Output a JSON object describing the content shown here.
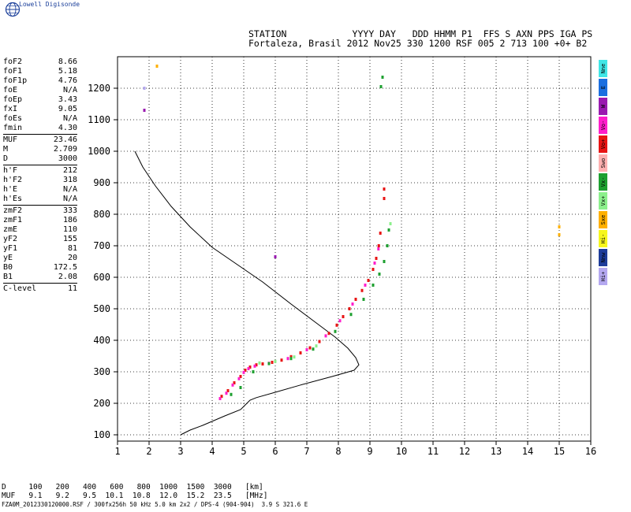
{
  "brand": {
    "name": "Lowell Digisonde"
  },
  "header": {
    "line1": "STATION            YYYY DAY   DDD HHMM P1  FFS S AXN PPS IGA PS",
    "line2": "Fortaleza, Brasil 2012 Nov25 330 1200 RSF 005 2 713 100 +0+ B2"
  },
  "params": [
    {
      "label": "foF2",
      "value": "8.66"
    },
    {
      "label": "foF1",
      "value": "5.18"
    },
    {
      "label": "foF1p",
      "value": "4.76"
    },
    {
      "label": "foE",
      "value": "N/A"
    },
    {
      "label": "foEp",
      "value": "3.43"
    },
    {
      "label": "fxI",
      "value": "9.05"
    },
    {
      "label": "foEs",
      "value": "N/A"
    },
    {
      "label": "fmin",
      "value": "4.30"
    },
    {
      "sep": true
    },
    {
      "label": "MUF",
      "value": "23.46"
    },
    {
      "label": "M",
      "value": "2.709"
    },
    {
      "label": "D",
      "value": "3000"
    },
    {
      "sep": true
    },
    {
      "label": "h'F",
      "value": "212"
    },
    {
      "label": "h'F2",
      "value": "318"
    },
    {
      "label": "h'E",
      "value": "N/A"
    },
    {
      "label": "h'Es",
      "value": "N/A"
    },
    {
      "sep": true
    },
    {
      "label": "zmF2",
      "value": "333"
    },
    {
      "label": "zmF1",
      "value": "186"
    },
    {
      "label": "zmE",
      "value": "110"
    },
    {
      "label": "yF2",
      "value": "155"
    },
    {
      "label": "yF1",
      "value": "81"
    },
    {
      "label": "yE",
      "value": "20"
    },
    {
      "label": "B0",
      "value": "172.5"
    },
    {
      "label": "B1",
      "value": "2.08"
    },
    {
      "sep": true
    },
    {
      "label": "C-level",
      "value": "11"
    }
  ],
  "legend": [
    {
      "label": "Nne",
      "color": "#3fe6e6"
    },
    {
      "label": "E",
      "color": "#1a6fe0"
    },
    {
      "label": "W",
      "color": "#9a1ab0"
    },
    {
      "label": "Vo-",
      "color": "#ff1ecb"
    },
    {
      "label": "Vo+",
      "color": "#e81414"
    },
    {
      "label": "Swo",
      "color": "#ffb0b0"
    },
    {
      "label": "Vx-",
      "color": "#1ea030"
    },
    {
      "label": "Vx+",
      "color": "#8cf08c"
    },
    {
      "label": "Sxe",
      "color": "#ffb000"
    },
    {
      "label": "Hi-",
      "color": "#f6f61e"
    },
    {
      "label": "Nnw",
      "color": "#1e3c9a"
    },
    {
      "label": "Hi+",
      "color": "#b4a8f0"
    }
  ],
  "footer": {
    "d_row": "D     100   200   400   600   800  1000  1500  3000   [km]",
    "muf_row": "MUF   9.1   9.2   9.5  10.1  10.8  12.0  15.2  23.5   [MHz]",
    "note": "FZA0M_2012330120000.RSF / 300fx256h 50 kHz 5.0 km 2x2 / DPS-4 (904-904)  3.9 S 321.6 E"
  },
  "chart_data": {
    "type": "scatter",
    "xlim": [
      1,
      16
    ],
    "ylim": [
      80,
      1300
    ],
    "x_ticks": [
      1,
      2,
      3,
      4,
      5,
      6,
      7,
      8,
      9,
      10,
      11,
      12,
      13,
      14,
      15,
      16
    ],
    "y_ticks": [
      100,
      200,
      300,
      400,
      500,
      600,
      700,
      800,
      900,
      1000,
      1100,
      1200
    ],
    "grid": true,
    "profile": [
      [
        1.55,
        1000
      ],
      [
        1.8,
        950
      ],
      [
        2.2,
        890
      ],
      [
        2.7,
        825
      ],
      [
        3.3,
        760
      ],
      [
        4.0,
        695
      ],
      [
        4.8,
        640
      ],
      [
        5.6,
        585
      ],
      [
        6.5,
        515
      ],
      [
        7.3,
        455
      ],
      [
        7.9,
        410
      ],
      [
        8.3,
        375
      ],
      [
        8.55,
        345
      ],
      [
        8.65,
        322
      ],
      [
        8.5,
        305
      ],
      [
        7.8,
        285
      ],
      [
        6.8,
        258
      ],
      [
        6.0,
        235
      ],
      [
        5.4,
        218
      ],
      [
        5.2,
        210
      ],
      [
        5.05,
        195
      ],
      [
        4.9,
        180
      ],
      [
        4.4,
        160
      ],
      [
        3.7,
        130
      ],
      [
        3.3,
        115
      ],
      [
        3.2,
        110
      ],
      [
        3.0,
        100
      ]
    ],
    "series": [
      {
        "color": "#e81414",
        "points": [
          [
            4.3,
            222
          ],
          [
            4.5,
            240
          ],
          [
            4.7,
            265
          ],
          [
            4.9,
            285
          ],
          [
            5.05,
            305
          ],
          [
            5.2,
            315
          ],
          [
            5.4,
            322
          ],
          [
            5.6,
            325
          ],
          [
            5.9,
            330
          ],
          [
            6.2,
            337
          ],
          [
            6.5,
            348
          ],
          [
            6.8,
            360
          ],
          [
            7.1,
            376
          ],
          [
            7.4,
            396
          ],
          [
            7.7,
            422
          ],
          [
            7.95,
            448
          ],
          [
            8.15,
            475
          ],
          [
            8.35,
            500
          ],
          [
            8.55,
            530
          ],
          [
            8.75,
            558
          ],
          [
            8.95,
            590
          ],
          [
            9.1,
            625
          ],
          [
            9.2,
            660
          ],
          [
            9.28,
            700
          ],
          [
            9.33,
            740
          ]
        ]
      },
      {
        "color": "#ff1ecb",
        "points": [
          [
            4.25,
            215
          ],
          [
            4.45,
            232
          ],
          [
            4.65,
            258
          ],
          [
            4.85,
            278
          ],
          [
            5.0,
            298
          ],
          [
            5.15,
            310
          ],
          [
            5.35,
            318
          ],
          [
            5.8,
            327
          ],
          [
            6.4,
            342
          ],
          [
            7.0,
            370
          ],
          [
            7.6,
            414
          ],
          [
            8.05,
            462
          ],
          [
            8.45,
            515
          ],
          [
            8.85,
            575
          ],
          [
            9.15,
            645
          ],
          [
            9.27,
            690
          ]
        ]
      },
      {
        "color": "#1ea030",
        "points": [
          [
            4.6,
            228
          ],
          [
            4.9,
            250
          ],
          [
            5.3,
            300
          ],
          [
            5.8,
            326
          ],
          [
            6.5,
            342
          ],
          [
            7.2,
            372
          ],
          [
            7.9,
            428
          ],
          [
            8.4,
            482
          ],
          [
            8.8,
            530
          ],
          [
            9.1,
            575
          ],
          [
            9.3,
            610
          ],
          [
            9.45,
            650
          ],
          [
            9.55,
            700
          ],
          [
            9.6,
            750
          ],
          [
            9.35,
            1205
          ],
          [
            9.4,
            1235
          ]
        ]
      },
      {
        "color": "#8cf08c",
        "points": [
          [
            5.5,
            328
          ],
          [
            6.0,
            333
          ],
          [
            6.6,
            347
          ],
          [
            7.3,
            382
          ],
          [
            9.65,
            770
          ]
        ]
      },
      {
        "color": "#e81414",
        "points": [
          [
            9.45,
            850
          ],
          [
            9.45,
            880
          ]
        ]
      },
      {
        "color": "#9a1ab0",
        "points": [
          [
            1.85,
            1130
          ],
          [
            6.0,
            665
          ]
        ]
      },
      {
        "color": "#b4a8f0",
        "points": [
          [
            1.85,
            1200
          ]
        ]
      },
      {
        "color": "#ffb000",
        "points": [
          [
            2.25,
            1270
          ],
          [
            15.0,
            735
          ],
          [
            15.0,
            760
          ]
        ]
      }
    ]
  }
}
